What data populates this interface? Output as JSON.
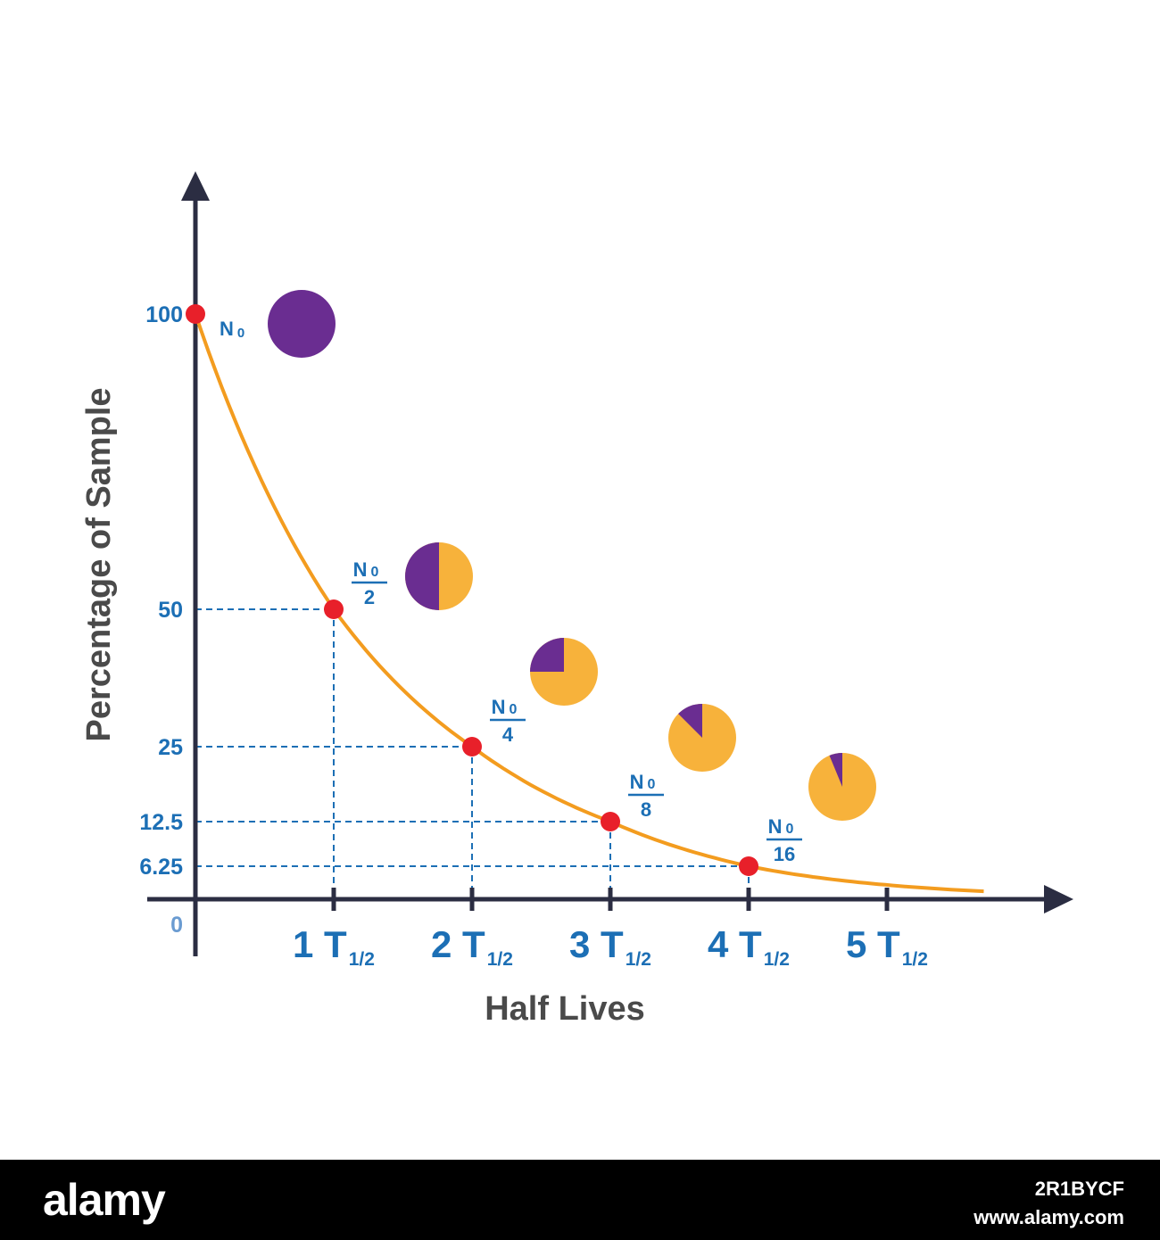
{
  "chart_data": {
    "type": "line",
    "xlabel": "Half Lives",
    "ylabel": "Percentage of Sample",
    "x": [
      0,
      1,
      2,
      3,
      4,
      5.7
    ],
    "y_curve": [
      100,
      50,
      25,
      12.5,
      6.25,
      1.5
    ],
    "points": [
      {
        "x": 0,
        "y": 100,
        "label_num": "N",
        "label_sub": "0",
        "label_den": ""
      },
      {
        "x": 1,
        "y": 50,
        "label_num": "N",
        "label_sub": "0",
        "label_den": "2"
      },
      {
        "x": 2,
        "y": 25,
        "label_num": "N",
        "label_sub": "0",
        "label_den": "4"
      },
      {
        "x": 3,
        "y": 12.5,
        "label_num": "N",
        "label_sub": "0",
        "label_den": "8"
      },
      {
        "x": 4,
        "y": 6.25,
        "label_num": "N",
        "label_sub": "0",
        "label_den": "16"
      }
    ],
    "y_ticks": [
      {
        "value": 100,
        "label": "100"
      },
      {
        "value": 50,
        "label": "50"
      },
      {
        "value": 25,
        "label": "25"
      },
      {
        "value": 12.5,
        "label": "12.5"
      },
      {
        "value": 6.25,
        "label": "6.25"
      },
      {
        "value": 0,
        "label": "0"
      }
    ],
    "x_ticks": [
      {
        "value": 1,
        "num": "1",
        "sym": "T",
        "sub": "1/2"
      },
      {
        "value": 2,
        "num": "2",
        "sym": "T",
        "sub": "1/2"
      },
      {
        "value": 3,
        "num": "3",
        "sym": "T",
        "sub": "1/2"
      },
      {
        "value": 4,
        "num": "4",
        "sym": "T",
        "sub": "1/2"
      },
      {
        "value": 5,
        "num": "5",
        "sym": "T",
        "sub": "1/2"
      }
    ],
    "pies": [
      {
        "remaining_fraction": 1
      },
      {
        "remaining_fraction": 0.5
      },
      {
        "remaining_fraction": 0.25
      },
      {
        "remaining_fraction": 0.125
      },
      {
        "remaining_fraction": 0.0625
      }
    ],
    "colors": {
      "curve": "#f39c1f",
      "point": "#e8202a",
      "guide": "#1c6fb5",
      "label": "#1c6fb5",
      "axis": "#2b2d42",
      "axis_title": "#4a4a4a",
      "pie_remaining": "#6a2d91",
      "pie_decayed": "#f7b23b"
    }
  },
  "footer": {
    "brand": "alamy",
    "image_id": "2R1BYCF",
    "site": "www.alamy.com"
  }
}
